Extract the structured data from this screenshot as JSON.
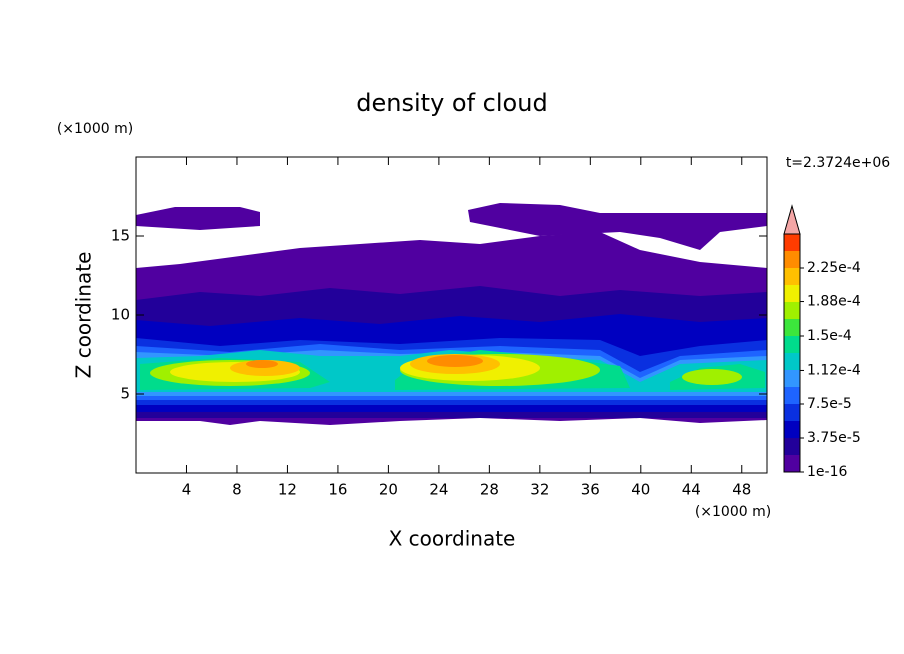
{
  "chart_data": {
    "type": "contour",
    "title": "density of cloud",
    "x_label": "X coordinate",
    "y_label": "Z coordinate",
    "x_unit": "(×1000 m)",
    "y_unit": "(×1000 m)",
    "time_label": "t=2.3724e+06",
    "xlim": [
      0,
      50
    ],
    "xticks": [
      4,
      8,
      12,
      16,
      20,
      24,
      28,
      32,
      36,
      40,
      44,
      48
    ],
    "ylim": [
      0,
      20
    ],
    "yticks": [
      5,
      10,
      15
    ],
    "colorbar": {
      "clim": [
        1e-16,
        0.0002625
      ],
      "ticks": [
        1e-16,
        {
          "value": 3.75e-05,
          "label": "3.75e-5"
        },
        {
          "value": 7.5e-05,
          "label": "7.5e-5"
        },
        {
          "value": 0.000112,
          "label": "1.12e-4"
        },
        {
          "value": 0.00015,
          "label": "1.5e-4"
        },
        {
          "value": 0.000188,
          "label": "1.88e-4"
        },
        {
          "value": 0.000225,
          "label": "2.25e-4"
        }
      ],
      "colors": [
        "#5000a0",
        "#22009a",
        "#0000c0",
        "#0a30e0",
        "#1e64ff",
        "#3296ff",
        "#00c8c8",
        "#00dc8c",
        "#3ce63c",
        "#a0f000",
        "#f0f000",
        "#ffc000",
        "#ff8c00",
        "#ff3c00"
      ],
      "extend_color": "#f4a6a6"
    }
  }
}
